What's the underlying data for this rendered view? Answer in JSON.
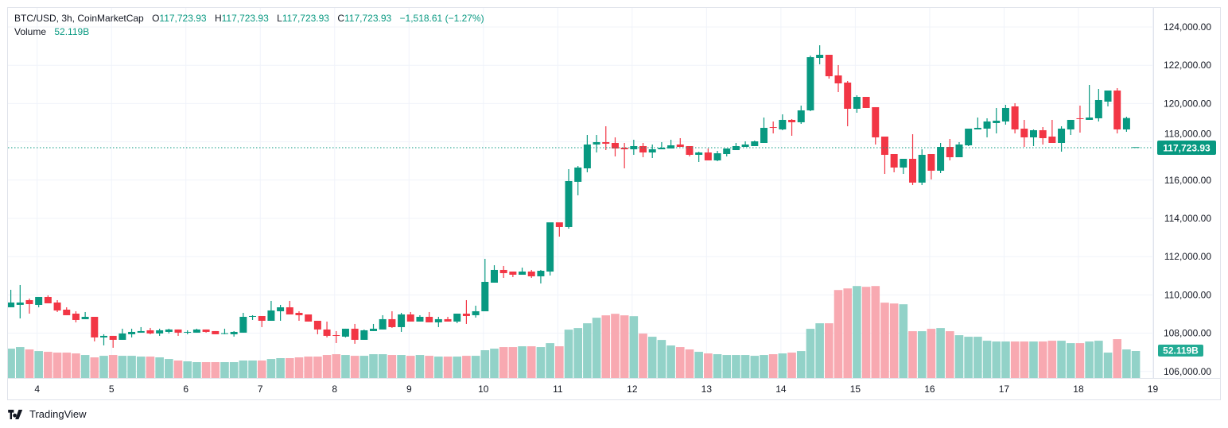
{
  "legend": {
    "symbol": "BTC/USD, 3h, CoinMarketCap",
    "open_label": "O",
    "open": "117,723.93",
    "high_label": "H",
    "high": "117,723.93",
    "low_label": "L",
    "low": "117,723.93",
    "close_label": "C",
    "close": "117,723.93",
    "change": "−1,518.61 (−1.27%)",
    "volume_label": "Volume",
    "volume": "52.119B"
  },
  "price_badge": "117,723.93",
  "volume_badge": "52.119B",
  "brand": {
    "name": "TradingView",
    "icon": "tradingview-logo-icon"
  },
  "colors": {
    "up": "#089981",
    "down": "#f23645",
    "volume_up": "#92d2c8",
    "volume_down": "#f8a9b1",
    "grid": "#f0f3fa"
  },
  "chart_data": {
    "type": "candlestick",
    "interval": "3h",
    "ylim": [
      106000,
      124000
    ],
    "y_ticks": [
      "124,000.00",
      "122,000.00",
      "120,000.00",
      "118,000.00",
      "116,000.00",
      "114,000.00",
      "112,000.00",
      "110,000.00",
      "108,000.00",
      "106,000.00"
    ],
    "y_tick_values": [
      124000,
      122000,
      120000,
      118000,
      116000,
      114000,
      112000,
      110000,
      108000,
      106000
    ],
    "x_ticks": [
      "4",
      "5",
      "6",
      "7",
      "8",
      "9",
      "10",
      "11",
      "12",
      "13",
      "14",
      "15",
      "16",
      "17",
      "18",
      "19"
    ],
    "last_price": 117723.93,
    "volume_unit": "B",
    "columns": [
      "open",
      "high",
      "low",
      "close",
      "volume"
    ],
    "candles": [
      [
        109354,
        110267,
        109354,
        109603,
        56.6
      ],
      [
        109480,
        110516,
        108772,
        109603,
        59.7
      ],
      [
        109727,
        109810,
        109022,
        109520,
        55.1
      ],
      [
        109478,
        109893,
        109353,
        109893,
        52.0
      ],
      [
        109893,
        109976,
        109561,
        109561,
        50.5
      ],
      [
        109603,
        109727,
        109105,
        109188,
        49.0
      ],
      [
        109230,
        109353,
        108939,
        108939,
        49.0
      ],
      [
        109022,
        109146,
        108566,
        108690,
        47.4
      ],
      [
        108731,
        109105,
        108731,
        108855,
        44.4
      ],
      [
        108855,
        108855,
        107570,
        107778,
        39.8
      ],
      [
        107778,
        107944,
        107363,
        107861,
        42.8
      ],
      [
        107861,
        107861,
        107238,
        107653,
        44.4
      ],
      [
        107653,
        108234,
        107653,
        107985,
        42.8
      ],
      [
        107944,
        108234,
        107778,
        108068,
        42.8
      ],
      [
        108027,
        108317,
        108027,
        108110,
        41.3
      ],
      [
        108151,
        108276,
        107944,
        107985,
        41.3
      ],
      [
        107985,
        108234,
        107861,
        108151,
        39.8
      ],
      [
        108068,
        108234,
        107985,
        108193,
        36.7
      ],
      [
        108193,
        108193,
        107861,
        108027,
        33.7
      ],
      [
        108027,
        108151,
        107944,
        108068,
        32.1
      ],
      [
        108027,
        108234,
        108027,
        108193,
        30.6
      ],
      [
        108193,
        108193,
        108027,
        108068,
        30.6
      ],
      [
        108110,
        108110,
        107944,
        107944,
        30.6
      ],
      [
        107985,
        108234,
        107944,
        108000,
        30.6
      ],
      [
        107944,
        108110,
        107820,
        108068,
        30.6
      ],
      [
        108027,
        109063,
        108027,
        108855,
        33.7
      ],
      [
        108855,
        108939,
        108690,
        108897,
        33.7
      ],
      [
        108897,
        108897,
        108317,
        108648,
        33.7
      ],
      [
        108648,
        109686,
        108648,
        109188,
        36.7
      ],
      [
        109146,
        109478,
        108648,
        109353,
        38.3
      ],
      [
        109353,
        109686,
        108980,
        108980,
        38.3
      ],
      [
        109063,
        109146,
        108648,
        108939,
        39.8
      ],
      [
        108980,
        108980,
        108607,
        108607,
        41.3
      ],
      [
        108648,
        108648,
        107944,
        108193,
        41.3
      ],
      [
        108193,
        108607,
        107778,
        107861,
        44.4
      ],
      [
        107900,
        108110,
        107487,
        107861,
        45.9
      ],
      [
        107820,
        108234,
        107778,
        108234,
        44.4
      ],
      [
        108234,
        108483,
        107446,
        107653,
        42.8
      ],
      [
        107653,
        108193,
        107653,
        108151,
        42.8
      ],
      [
        108110,
        108483,
        108110,
        108234,
        45.9
      ],
      [
        108193,
        108939,
        108193,
        108732,
        45.9
      ],
      [
        108732,
        109146,
        108276,
        108317,
        44.4
      ],
      [
        108317,
        109063,
        108068,
        108980,
        44.4
      ],
      [
        108980,
        109105,
        108607,
        108607,
        42.8
      ],
      [
        108607,
        108939,
        108607,
        108855,
        44.4
      ],
      [
        108855,
        109105,
        108566,
        108566,
        42.8
      ],
      [
        108566,
        108855,
        108317,
        108732,
        41.3
      ],
      [
        108732,
        108855,
        108607,
        108607,
        41.3
      ],
      [
        108607,
        109022,
        108524,
        109022,
        41.3
      ],
      [
        109022,
        109727,
        108483,
        108897,
        42.8
      ],
      [
        108939,
        109437,
        108815,
        109146,
        42.8
      ],
      [
        109146,
        111885,
        109146,
        110682,
        53.6
      ],
      [
        110640,
        111552,
        110640,
        111304,
        56.6
      ],
      [
        111304,
        111512,
        110889,
        111138,
        59.7
      ],
      [
        111221,
        111221,
        110930,
        111055,
        59.7
      ],
      [
        111055,
        111428,
        111055,
        111221,
        61.2
      ],
      [
        111221,
        111304,
        110889,
        110972,
        61.2
      ],
      [
        110972,
        111304,
        110599,
        111262,
        59.7
      ],
      [
        111221,
        113793,
        111013,
        113793,
        67.3
      ],
      [
        113793,
        113793,
        113047,
        113545,
        61.2
      ],
      [
        113545,
        116573,
        113462,
        115951,
        93.3
      ],
      [
        115910,
        116739,
        115204,
        116656,
        96.4
      ],
      [
        116614,
        118357,
        116408,
        117859,
        105.6
      ],
      [
        117859,
        118357,
        117444,
        117983,
        116.3
      ],
      [
        117983,
        118813,
        117568,
        117900,
        120.9
      ],
      [
        117942,
        118233,
        117237,
        117651,
        123.9
      ],
      [
        117693,
        117942,
        116614,
        117610,
        120.9
      ],
      [
        117610,
        118108,
        117320,
        117776,
        119.3
      ],
      [
        117776,
        117942,
        117195,
        117444,
        85.7
      ],
      [
        117444,
        117859,
        117154,
        117610,
        79.6
      ],
      [
        117610,
        117983,
        117610,
        117693,
        73.4
      ],
      [
        117651,
        118108,
        117651,
        117817,
        62.7
      ],
      [
        117859,
        118191,
        117734,
        117734,
        59.7
      ],
      [
        117776,
        117776,
        117237,
        117320,
        55.1
      ],
      [
        117320,
        117485,
        116946,
        117444,
        50.5
      ],
      [
        117444,
        117651,
        117029,
        117029,
        47.4
      ],
      [
        117029,
        117527,
        116988,
        117402,
        45.9
      ],
      [
        117361,
        117651,
        117237,
        117651,
        44.4
      ],
      [
        117568,
        117942,
        117568,
        117776,
        44.4
      ],
      [
        117734,
        118025,
        117734,
        117859,
        44.4
      ],
      [
        117776,
        118066,
        117776,
        118025,
        42.8
      ],
      [
        117942,
        119270,
        117942,
        118730,
        44.4
      ],
      [
        118771,
        119063,
        118440,
        118730,
        45.9
      ],
      [
        118648,
        119436,
        118606,
        119146,
        47.4
      ],
      [
        119146,
        119187,
        118316,
        119022,
        49.0
      ],
      [
        119022,
        119892,
        118938,
        119643,
        52.0
      ],
      [
        119643,
        122506,
        119602,
        122423,
        94.9
      ],
      [
        122382,
        123046,
        122050,
        122548,
        105.6
      ],
      [
        122548,
        122548,
        121303,
        121427,
        105.6
      ],
      [
        121469,
        122009,
        120597,
        121054,
        169.8
      ],
      [
        121096,
        121179,
        118813,
        119726,
        172.9
      ],
      [
        119726,
        120431,
        119519,
        120348,
        177.5
      ],
      [
        120348,
        120348,
        119768,
        119768,
        176.0
      ],
      [
        119810,
        119810,
        117859,
        118233,
        177.5
      ],
      [
        118274,
        118274,
        116324,
        117320,
        145.4
      ],
      [
        117361,
        117361,
        116407,
        116656,
        143.8
      ],
      [
        116656,
        117112,
        116324,
        117112,
        142.3
      ],
      [
        117112,
        118398,
        115743,
        115868,
        90.3
      ],
      [
        115868,
        117610,
        115743,
        117320,
        90.3
      ],
      [
        117361,
        117361,
        116034,
        116490,
        94.9
      ],
      [
        116490,
        117942,
        116366,
        117734,
        96.4
      ],
      [
        117734,
        118150,
        117029,
        117195,
        90.3
      ],
      [
        117195,
        117983,
        117195,
        117859,
        82.6
      ],
      [
        117817,
        118689,
        117776,
        118689,
        79.6
      ],
      [
        118648,
        119270,
        118648,
        118730,
        79.6
      ],
      [
        118689,
        119229,
        118233,
        119063,
        71.9
      ],
      [
        118980,
        119768,
        118440,
        119105,
        70.4
      ],
      [
        119063,
        119934,
        118897,
        119768,
        70.4
      ],
      [
        119851,
        120017,
        118440,
        118648,
        70.4
      ],
      [
        118689,
        119146,
        117734,
        118233,
        70.4
      ],
      [
        118233,
        118648,
        117776,
        118606,
        70.4
      ],
      [
        118606,
        118772,
        117859,
        118191,
        70.4
      ],
      [
        118274,
        119146,
        117942,
        117942,
        71.9
      ],
      [
        117942,
        118813,
        117485,
        118689,
        71.9
      ],
      [
        118648,
        119146,
        118357,
        119146,
        67.3
      ],
      [
        119229,
        119892,
        118482,
        119187,
        67.3
      ],
      [
        119146,
        120971,
        119146,
        119270,
        70.4
      ],
      [
        119229,
        120763,
        119063,
        120183,
        71.9
      ],
      [
        120100,
        120680,
        119851,
        120680,
        49.0
      ],
      [
        120680,
        120805,
        118440,
        118648,
        75.0
      ],
      [
        118648,
        119312,
        118523,
        119242.54,
        55.1
      ],
      [
        117723.93,
        117723.93,
        117723.93,
        117723.93,
        52.119
      ]
    ]
  }
}
